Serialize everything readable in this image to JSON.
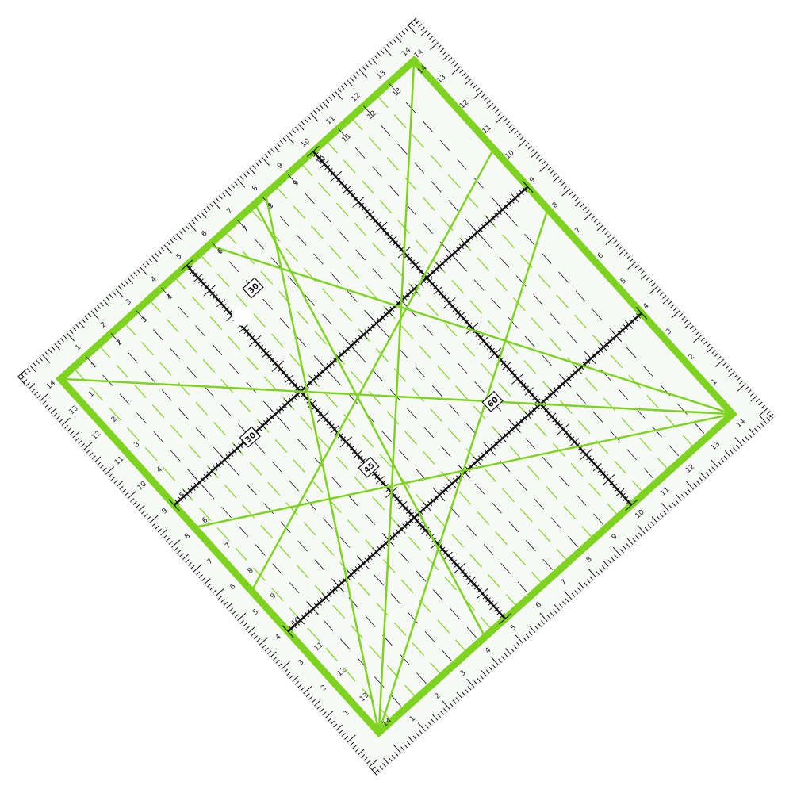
{
  "ruler": {
    "edge_numbers": [
      "1",
      "2",
      "3",
      "4",
      "5",
      "6",
      "7",
      "8",
      "9",
      "10",
      "11",
      "12",
      "13",
      "14"
    ],
    "angle_labels": [
      "30",
      "30",
      "45",
      "60"
    ],
    "colors": {
      "accent": "#7ed321",
      "ink": "#111111",
      "surface": "#f7f9f7"
    },
    "rotation_deg": -42
  }
}
